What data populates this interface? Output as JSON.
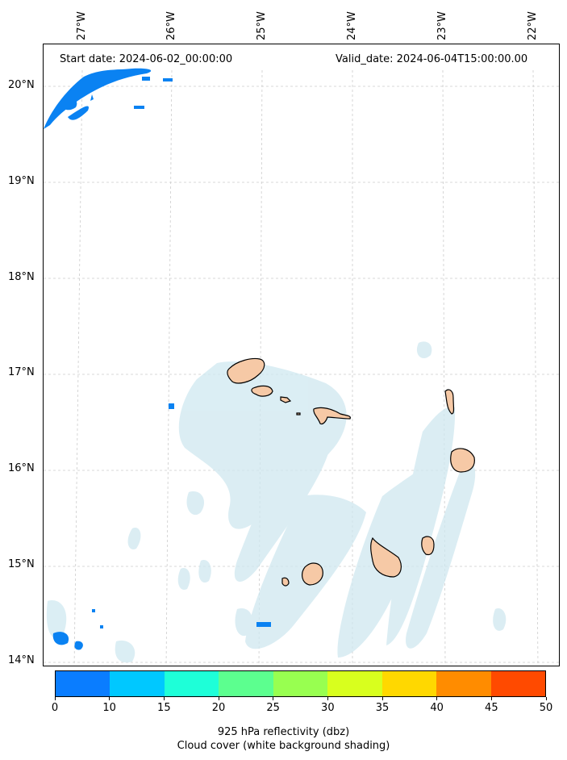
{
  "header": {
    "start_date": "Start date: 2024-06-02_00:00:00",
    "valid_date": "Valid_date: 2024-06-04T15:00:00.00"
  },
  "map": {
    "longitude_labels": [
      "27°W",
      "26°W",
      "25°W",
      "24°W",
      "23°W",
      "22°W"
    ],
    "latitude_labels": [
      "20°N",
      "19°N",
      "18°N",
      "17°N",
      "16°N",
      "15°N",
      "14°N"
    ],
    "colors": {
      "reflectivity_low": "#0a82f2",
      "cloud_shade": "#cfe8f0",
      "land_fill": "#f6c9a6",
      "land_edge": "#000000",
      "gridline": "#cccccc"
    }
  },
  "colorbar": {
    "ticks": [
      "0",
      "10",
      "15",
      "20",
      "25",
      "30",
      "35",
      "40",
      "45",
      "50"
    ],
    "colors": [
      "#0a7dff",
      "#00c8ff",
      "#1effd8",
      "#5cff8f",
      "#98ff50",
      "#d8ff1e",
      "#ffd800",
      "#ff8c00",
      "#ff4a00"
    ],
    "label_line1": "925 hPa reflectivity (dbz)",
    "label_line2": "Cloud cover (white background shading)"
  }
}
